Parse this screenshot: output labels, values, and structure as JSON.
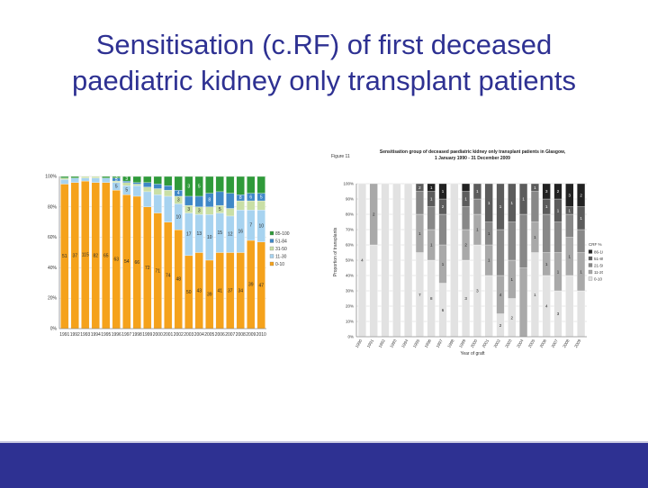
{
  "title": {
    "line1": "Sensitisation (c.RF) of first deceased",
    "line2": "paediatric kidney only transplant patients"
  },
  "colors": {
    "title": "#2e3192",
    "footer": "#2e3192",
    "left_series": [
      "#f5a21b",
      "#a7d3f0",
      "#c9dfa6",
      "#3f88c7",
      "#2f9a3a"
    ],
    "right_series": [
      "#e2e2e2",
      "#a9a9a9",
      "#888888",
      "#5c5c5c",
      "#222222"
    ]
  },
  "chart_data": [
    {
      "type": "bar",
      "stacked": true,
      "title": "",
      "xlabel": "",
      "ylabel": "",
      "ylim": [
        0,
        100
      ],
      "y_tick_labels": [
        "0%",
        "20%",
        "40%",
        "60%",
        "80%",
        "100%"
      ],
      "categories": [
        "1991",
        "1992",
        "1993",
        "1994",
        "1995",
        "1996",
        "1997",
        "1998",
        "1999",
        "2000",
        "2001",
        "2002",
        "2003",
        "2004",
        "2005",
        "2006",
        "2007",
        "2008",
        "2009",
        "2010"
      ],
      "legend": [
        "85-100",
        "51-84",
        "31-50",
        "11-30",
        "0-10"
      ],
      "legend_position": "right",
      "series": [
        {
          "name": "0-10",
          "values": [
            95,
            96,
            97,
            96,
            96,
            91,
            88,
            87,
            80,
            76,
            70,
            65,
            48,
            50,
            45,
            50,
            50,
            50,
            58,
            57
          ]
        },
        {
          "name": "11-30",
          "values": [
            3,
            3,
            2,
            3,
            3,
            5,
            6,
            7,
            10,
            12,
            17,
            17,
            28,
            25,
            30,
            26,
            24,
            28,
            20,
            21
          ]
        },
        {
          "name": "31-50",
          "values": [
            1,
            0,
            1,
            1,
            0,
            1,
            2,
            1,
            3,
            4,
            4,
            5,
            5,
            5,
            5,
            5,
            5,
            6,
            6,
            6
          ]
        },
        {
          "name": "51-84",
          "values": [
            0,
            0,
            0,
            0,
            0,
            2,
            1,
            1,
            3,
            3,
            3,
            4,
            6,
            7,
            9,
            9,
            10,
            4,
            5,
            5
          ]
        },
        {
          "name": "85-100",
          "values": [
            1,
            1,
            0,
            0,
            1,
            1,
            3,
            4,
            4,
            5,
            6,
            9,
            13,
            13,
            11,
            10,
            11,
            12,
            11,
            11
          ]
        }
      ],
      "bar_labels": [
        {
          "series": "0-10",
          "values": [
            "51",
            "37",
            "115",
            "82",
            "65",
            "63",
            "54",
            "66",
            "72",
            "71",
            "74",
            "48",
            "50",
            "43",
            "39",
            "41",
            "37",
            "34",
            "39",
            "47"
          ]
        },
        {
          "series": "11-30",
          "values": [
            "",
            "",
            "",
            "",
            "",
            "5",
            "5",
            "",
            "",
            "",
            "",
            "10",
            "17",
            "13",
            "10",
            "15",
            "12",
            "16",
            "7",
            "10"
          ]
        },
        {
          "series": "31-50",
          "values": [
            "",
            "",
            "",
            "",
            "",
            "",
            "",
            "",
            "",
            "",
            "",
            "3",
            "3",
            "3",
            "",
            "5",
            "",
            "",
            "",
            ""
          ]
        },
        {
          "series": "51-84",
          "values": [
            "3",
            "3",
            "",
            "",
            "",
            "5",
            "",
            "",
            "",
            "",
            "",
            "4",
            "",
            "",
            "8",
            "",
            "",
            "8",
            "6",
            "5"
          ]
        },
        {
          "series": "85-100",
          "values": [
            "",
            "",
            "",
            "",
            "",
            "3",
            "3",
            "",
            "",
            "",
            "",
            "",
            "3",
            "5",
            "",
            "",
            "",
            "",
            "",
            ""
          ]
        }
      ]
    },
    {
      "type": "bar",
      "stacked": true,
      "figure_label": "Figure 11",
      "title": "Sensitisation group of deceased paediatric kidney only transplant patients in Glasgow, 1 January 1990 - 31 December 2009",
      "xlabel": "Year of graft",
      "ylabel": "Proportion of transplants",
      "ylim": [
        0,
        100
      ],
      "y_tick_labels": [
        "0%",
        "10%",
        "20%",
        "30%",
        "40%",
        "50%",
        "60%",
        "70%",
        "80%",
        "90%",
        "100%"
      ],
      "categories": [
        "1990",
        "1991",
        "1992",
        "1993",
        "1994",
        "1995",
        "1996",
        "1997",
        "1998",
        "1999",
        "2000",
        "2001",
        "2002",
        "2003",
        "2004",
        "2005",
        "2006",
        "2007",
        "2008",
        "2009"
      ],
      "legend": [
        "CRF %",
        "86-100",
        "51-85",
        "21-50",
        "11-20",
        "0-10"
      ],
      "legend_position": "right",
      "series": [
        {
          "name": "0-10",
          "values": [
            100,
            60,
            100,
            100,
            100,
            55,
            50,
            35,
            100,
            50,
            60,
            40,
            15,
            25,
            0,
            55,
            40,
            30,
            40,
            30
          ]
        },
        {
          "name": "11-20",
          "values": [
            0,
            40,
            0,
            0,
            0,
            25,
            20,
            25,
            0,
            20,
            20,
            20,
            25,
            25,
            45,
            20,
            15,
            25,
            25,
            25
          ]
        },
        {
          "name": "21-50",
          "values": [
            0,
            0,
            0,
            0,
            0,
            15,
            15,
            20,
            0,
            15,
            10,
            15,
            30,
            25,
            35,
            20,
            25,
            20,
            15,
            15
          ]
        },
        {
          "name": "51-85",
          "values": [
            0,
            0,
            0,
            0,
            0,
            5,
            10,
            10,
            0,
            10,
            10,
            25,
            30,
            25,
            20,
            5,
            10,
            15,
            5,
            15
          ]
        },
        {
          "name": "86-100",
          "values": [
            0,
            0,
            0,
            0,
            0,
            0,
            5,
            10,
            0,
            5,
            0,
            0,
            0,
            0,
            0,
            0,
            10,
            10,
            15,
            15
          ]
        }
      ],
      "bar_labels": [
        {
          "series": "0-10",
          "values": [
            "4",
            "",
            "",
            "",
            "",
            "7",
            "8",
            "6",
            "",
            "3",
            "3",
            "",
            "2",
            "2",
            "",
            "1",
            "4",
            "3",
            "",
            ""
          ]
        },
        {
          "series": "11-20",
          "values": [
            "",
            "2",
            "",
            "",
            "",
            "1",
            "1",
            "1",
            "",
            "2",
            "1",
            "1",
            "4",
            "1",
            "",
            "1",
            "1",
            "1",
            "1",
            "1"
          ]
        },
        {
          "series": "21-50",
          "values": [
            "",
            "",
            "",
            "",
            "",
            "",
            "",
            "",
            "",
            "",
            "",
            "1",
            "",
            "",
            "",
            "",
            "",
            "",
            "",
            ""
          ]
        },
        {
          "series": "51-85",
          "values": [
            "",
            "",
            "",
            "",
            "",
            "2",
            "1",
            "2",
            "",
            "1",
            "1",
            "1",
            "1",
            "1",
            "1",
            "1",
            "1",
            "1",
            "1",
            "1"
          ]
        },
        {
          "series": "86-100",
          "values": [
            "",
            "",
            "",
            "",
            "",
            "",
            "1",
            "1",
            "",
            "",
            "",
            "",
            "",
            "",
            "",
            "",
            "3",
            "2",
            "3",
            "2"
          ]
        }
      ]
    }
  ]
}
